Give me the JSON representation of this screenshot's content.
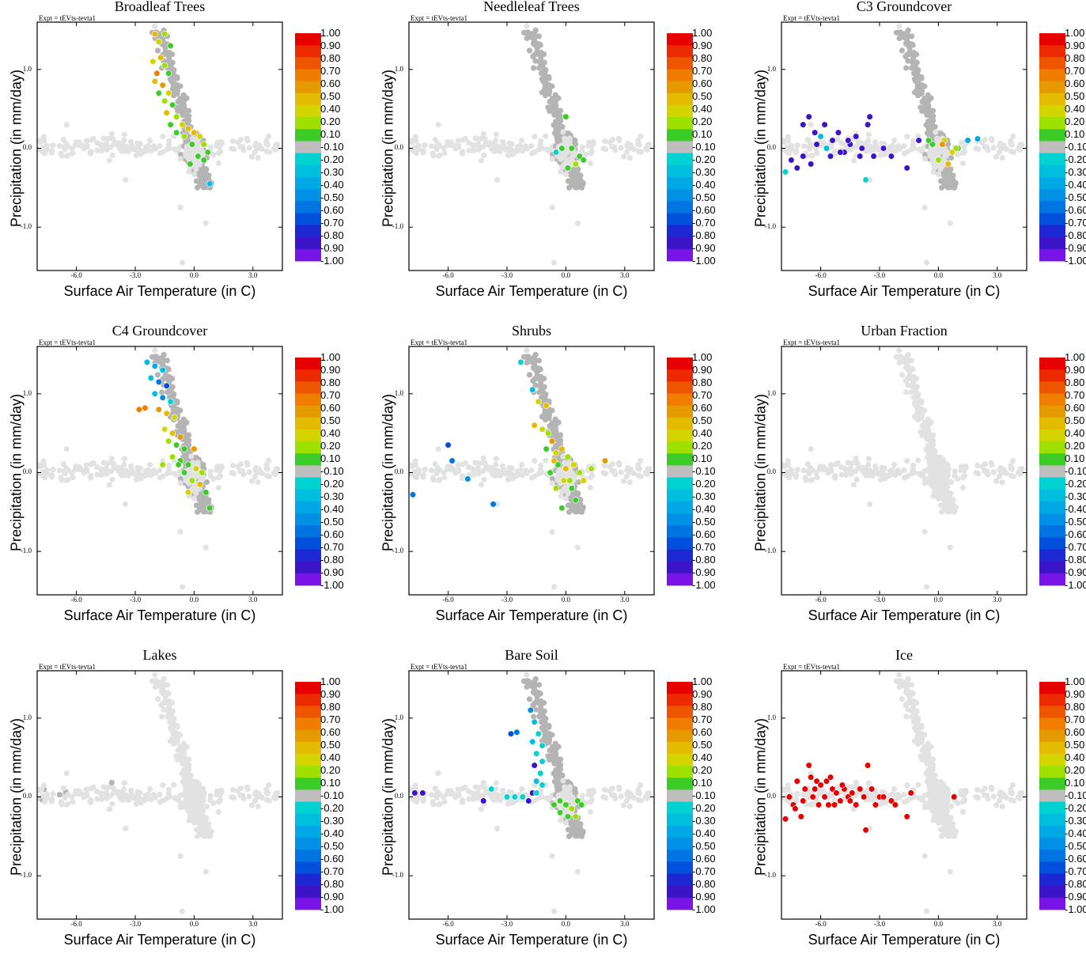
{
  "figure": {
    "experiment_label": "Expt = tEVts-tevta1",
    "xlabel": "Surface Air Temperature (in C)",
    "ylabel": "Precipitation (in mm/day)"
  },
  "chart_data": {
    "type": "scatter",
    "xlim": [
      -8.0,
      4.5
    ],
    "ylim": [
      -1.55,
      1.6
    ],
    "x_ticks": [
      -6.0,
      -3.0,
      0.0,
      3.0
    ],
    "x_tick_labels": [
      "-6.0",
      "-3.0",
      "0.0",
      "3.0"
    ],
    "y_ticks": [
      1.0,
      0.0,
      -1.0
    ],
    "y_tick_labels": [
      "1.0",
      "0.0",
      "-1.0"
    ],
    "colorbar": {
      "labels": [
        "1.00",
        "0.90",
        "0.80",
        "0.70",
        "0.60",
        "0.50",
        "0.40",
        "0.20",
        "0.10",
        "-0.10",
        "-0.20",
        "-0.30",
        "-0.40",
        "-0.50",
        "-0.60",
        "-0.70",
        "-0.80",
        "-0.90",
        "-1.00"
      ],
      "colors": [
        "#e60000",
        "#ec2a00",
        "#ee5500",
        "#f07d00",
        "#e59a00",
        "#e3bb00",
        "#d4d400",
        "#9ee000",
        "#3ccc28",
        "#bebebe",
        "#00d2d2",
        "#00bede",
        "#00a8e6",
        "#0090e6",
        "#0074e0",
        "#0050dc",
        "#1e28d2",
        "#3c14c8",
        "#7814e6"
      ]
    },
    "background_cloud_color": "#e2e2e2",
    "zero_class_color": "#b4b4b4",
    "panels": [
      {
        "title": "Broadleaf Trees",
        "highlight": [
          [
            -2.0,
            1.45
          ],
          [
            -1.8,
            1.35
          ],
          [
            -1.5,
            1.45
          ],
          [
            -1.2,
            1.3
          ],
          [
            -2.1,
            1.1
          ],
          [
            -1.7,
            1.15
          ],
          [
            -1.5,
            1.05
          ],
          [
            -1.9,
            0.95
          ],
          [
            -1.3,
            0.95
          ],
          [
            -2.0,
            0.85
          ],
          [
            -1.6,
            0.8
          ],
          [
            -1.8,
            0.7
          ],
          [
            -1.3,
            0.7
          ],
          [
            -1.5,
            0.6
          ],
          [
            -1.1,
            0.55
          ],
          [
            -1.4,
            0.45
          ],
          [
            -0.9,
            0.4
          ],
          [
            -1.2,
            0.3
          ],
          [
            -0.6,
            0.3
          ],
          [
            -0.9,
            0.2
          ],
          [
            -0.3,
            0.25
          ],
          [
            -0.5,
            0.15
          ],
          [
            0.0,
            0.2
          ],
          [
            0.3,
            0.15
          ],
          [
            -0.1,
            0.05
          ],
          [
            0.5,
            0.05
          ],
          [
            0.7,
            -0.05
          ],
          [
            0.2,
            -0.1
          ],
          [
            0.5,
            -0.15
          ],
          [
            0.8,
            -0.45
          ],
          [
            -0.2,
            -0.2
          ]
        ],
        "highlight_values": [
          0.5,
          0.4,
          0.2,
          0.1,
          0.4,
          0.5,
          0.2,
          0.7,
          0.1,
          0.5,
          0.6,
          0.1,
          0.4,
          0.2,
          0.1,
          0.5,
          0.2,
          0.1,
          0.4,
          0.1,
          0.5,
          0.2,
          0.5,
          0.4,
          0.1,
          0.2,
          0.1,
          0.1,
          0.1,
          -0.3,
          0.1
        ],
        "zero_count": 340,
        "light_count": 260
      },
      {
        "title": "Needleleaf Trees",
        "highlight": [
          [
            0.0,
            0.4
          ],
          [
            -0.2,
            0.0
          ],
          [
            0.3,
            0.0
          ],
          [
            0.5,
            -0.2
          ],
          [
            0.7,
            -0.1
          ],
          [
            0.1,
            -0.25
          ],
          [
            0.9,
            -0.15
          ],
          [
            -0.5,
            -0.05
          ]
        ],
        "highlight_values": [
          0.1,
          0.1,
          0.1,
          0.2,
          0.1,
          0.1,
          0.1,
          -0.2
        ],
        "zero_count": 340,
        "light_count": 260
      },
      {
        "title": "C3 Groundcover",
        "highlight": [
          [
            -7.5,
            -0.15
          ],
          [
            -7.2,
            -0.25
          ],
          [
            -6.9,
            0.3
          ],
          [
            -6.6,
            0.4
          ],
          [
            -6.3,
            0.2
          ],
          [
            -6.0,
            0.15
          ],
          [
            -5.7,
            0.0
          ],
          [
            -5.4,
            0.1
          ],
          [
            -5.1,
            0.2
          ],
          [
            -4.8,
            -0.05
          ],
          [
            -4.5,
            0.05
          ],
          [
            -4.2,
            0.15
          ],
          [
            -3.9,
            0.0
          ],
          [
            -3.6,
            0.3
          ],
          [
            -3.3,
            -0.1
          ],
          [
            -6.9,
            -0.1
          ],
          [
            -6.5,
            -0.2
          ],
          [
            -6.2,
            0.05
          ],
          [
            -5.8,
            0.3
          ],
          [
            -5.5,
            -0.1
          ],
          [
            -5.0,
            -0.05
          ],
          [
            -4.6,
            0.1
          ],
          [
            -4.0,
            -0.1
          ],
          [
            -3.5,
            0.4
          ],
          [
            -2.8,
            0.0
          ],
          [
            -2.4,
            -0.1
          ],
          [
            -1.6,
            -0.25
          ],
          [
            -1.0,
            0.1
          ],
          [
            -7.8,
            -0.3
          ],
          [
            -6.0,
            0.15
          ],
          [
            -5.7,
            0.0
          ],
          [
            -3.7,
            -0.4
          ],
          [
            1.5,
            0.1
          ],
          [
            2.0,
            0.12
          ],
          [
            1.0,
            0.0
          ],
          [
            0.3,
            0.1
          ],
          [
            -0.3,
            0.05
          ],
          [
            0.0,
            -0.15
          ],
          [
            0.5,
            -0.2
          ],
          [
            -0.5,
            0.1
          ],
          [
            0.2,
            0.05
          ],
          [
            0.7,
            -0.05
          ],
          [
            0.9,
            0.0
          ]
        ],
        "highlight_values": [
          -0.9,
          -0.9,
          -0.9,
          -0.9,
          -0.9,
          -0.9,
          -0.9,
          -0.9,
          -0.9,
          -0.9,
          -0.9,
          -0.9,
          -0.9,
          -0.9,
          -0.9,
          -0.9,
          -0.9,
          -0.9,
          -0.9,
          -0.9,
          -0.9,
          -0.9,
          -0.9,
          -0.9,
          -0.9,
          -0.9,
          -0.9,
          -0.9,
          -0.2,
          -0.3,
          -0.3,
          -0.2,
          -0.4,
          -0.4,
          0.1,
          0.4,
          0.1,
          0.2,
          0.5,
          0.1,
          0.6,
          0.4,
          0.2
        ],
        "zero_count": 330,
        "light_count": 220
      },
      {
        "title": "C4 Groundcover",
        "highlight": [
          [
            -2.4,
            1.4
          ],
          [
            -2.0,
            1.35
          ],
          [
            -1.6,
            1.3
          ],
          [
            -2.2,
            1.2
          ],
          [
            -1.8,
            1.15
          ],
          [
            -1.4,
            1.1
          ],
          [
            -2.0,
            1.0
          ],
          [
            -1.6,
            0.95
          ],
          [
            -1.2,
            0.9
          ],
          [
            -2.8,
            0.8
          ],
          [
            -2.5,
            0.82
          ],
          [
            -1.8,
            0.8
          ],
          [
            -1.4,
            0.75
          ],
          [
            -1.0,
            0.7
          ],
          [
            -1.5,
            0.55
          ],
          [
            -1.1,
            0.5
          ],
          [
            -0.7,
            0.45
          ],
          [
            -1.3,
            0.4
          ],
          [
            -0.9,
            0.35
          ],
          [
            -0.5,
            0.3
          ],
          [
            -1.1,
            0.2
          ],
          [
            -0.7,
            0.15
          ],
          [
            -0.3,
            0.1
          ],
          [
            0.1,
            0.05
          ],
          [
            -0.5,
            0.0
          ],
          [
            -0.1,
            -0.1
          ],
          [
            0.3,
            -0.15
          ],
          [
            0.6,
            -0.25
          ],
          [
            -0.8,
            0.1
          ],
          [
            0.0,
            0.3
          ],
          [
            0.4,
            0.0
          ],
          [
            0.8,
            -0.45
          ],
          [
            -1.6,
            0.1
          ],
          [
            -0.3,
            -0.25
          ]
        ],
        "highlight_values": [
          -0.3,
          -0.4,
          -0.3,
          -0.3,
          -0.6,
          -0.7,
          -0.3,
          -0.5,
          -0.2,
          0.7,
          0.7,
          0.6,
          0.5,
          0.4,
          0.4,
          0.5,
          0.6,
          0.2,
          0.1,
          0.1,
          0.2,
          0.1,
          0.1,
          0.4,
          0.1,
          0.2,
          0.5,
          0.1,
          0.1,
          0.6,
          0.2,
          0.1,
          0.2,
          0.4
        ],
        "zero_count": 340,
        "light_count": 260
      },
      {
        "title": "Shrubs",
        "highlight": [
          [
            -7.8,
            -0.28
          ],
          [
            -6.0,
            0.35
          ],
          [
            -5.8,
            0.15
          ],
          [
            -5.0,
            -0.08
          ],
          [
            -3.7,
            -0.4
          ],
          [
            -2.3,
            1.4
          ],
          [
            -1.7,
            1.05
          ],
          [
            -1.4,
            0.9
          ],
          [
            -1.0,
            0.85
          ],
          [
            -1.6,
            0.6
          ],
          [
            -1.2,
            0.55
          ],
          [
            -0.9,
            0.5
          ],
          [
            -0.7,
            0.4
          ],
          [
            -1.0,
            0.3
          ],
          [
            -0.5,
            0.25
          ],
          [
            -0.2,
            0.3
          ],
          [
            0.1,
            0.2
          ],
          [
            -0.4,
            0.1
          ],
          [
            0.0,
            0.05
          ],
          [
            0.4,
            0.1
          ],
          [
            0.7,
            0.0
          ],
          [
            -0.8,
            0.0
          ],
          [
            -0.1,
            -0.1
          ],
          [
            0.3,
            -0.2
          ],
          [
            -0.5,
            -0.2
          ],
          [
            0.9,
            -0.1
          ],
          [
            2.0,
            0.15
          ],
          [
            0.5,
            -0.35
          ],
          [
            -0.2,
            -0.45
          ],
          [
            -0.6,
            0.15
          ],
          [
            0.2,
            -0.1
          ],
          [
            1.3,
            0.05
          ]
        ],
        "highlight_values": [
          -0.6,
          -0.7,
          -0.6,
          -0.5,
          -0.6,
          -0.2,
          -0.3,
          0.4,
          0.5,
          0.5,
          0.4,
          0.2,
          0.6,
          0.1,
          0.4,
          0.5,
          0.2,
          0.1,
          0.5,
          0.4,
          0.2,
          0.1,
          0.4,
          0.1,
          0.2,
          0.4,
          0.6,
          0.1,
          0.1,
          0.5,
          0.2,
          0.2
        ],
        "zero_count": 340,
        "light_count": 260
      },
      {
        "title": "Urban Fraction",
        "highlight": [],
        "highlight_values": [],
        "zero_count": 0,
        "light_count": 560
      },
      {
        "title": "Lakes",
        "highlight": [],
        "highlight_values": [],
        "zero_count": 12,
        "light_count": 560
      },
      {
        "title": "Bare Soil",
        "highlight": [
          [
            -1.8,
            1.1
          ],
          [
            -1.6,
            0.95
          ],
          [
            -2.8,
            0.8
          ],
          [
            -2.5,
            0.82
          ],
          [
            -1.4,
            0.8
          ],
          [
            -1.7,
            0.7
          ],
          [
            -1.2,
            0.65
          ],
          [
            -1.5,
            0.55
          ],
          [
            -1.2,
            0.45
          ],
          [
            -1.6,
            0.4
          ],
          [
            -1.3,
            0.3
          ],
          [
            -1.5,
            0.2
          ],
          [
            -1.2,
            0.15
          ],
          [
            -1.7,
            0.05
          ],
          [
            -3.0,
            0.0
          ],
          [
            -2.6,
            0.0
          ],
          [
            -2.2,
            0.0
          ],
          [
            -1.9,
            -0.05
          ],
          [
            -3.8,
            0.1
          ],
          [
            -4.2,
            -0.05
          ],
          [
            -7.7,
            0.05
          ],
          [
            -7.3,
            0.05
          ],
          [
            -1.5,
            0.05
          ],
          [
            -0.6,
            -0.1
          ],
          [
            -0.3,
            -0.2
          ],
          [
            0.0,
            -0.1
          ],
          [
            0.3,
            -0.15
          ],
          [
            0.6,
            -0.05
          ],
          [
            -0.3,
            -0.05
          ],
          [
            0.1,
            -0.25
          ],
          [
            0.5,
            -0.25
          ],
          [
            0.8,
            -0.1
          ]
        ],
        "highlight_values": [
          -0.5,
          -0.3,
          -0.7,
          -0.6,
          -0.2,
          -0.3,
          -0.2,
          -0.2,
          -0.2,
          -0.9,
          -0.2,
          -0.3,
          -0.2,
          -0.9,
          -0.2,
          -0.2,
          -0.2,
          -0.9,
          -0.2,
          -0.9,
          -0.9,
          -0.9,
          -0.2,
          0.1,
          0.1,
          0.1,
          0.2,
          0.1,
          0.1,
          0.1,
          0.2,
          0.1
        ],
        "zero_count": 340,
        "light_count": 240
      },
      {
        "title": "Ice",
        "highlight": [
          [
            -7.8,
            -0.28
          ],
          [
            -7.6,
            0.0
          ],
          [
            -7.4,
            -0.1
          ],
          [
            -7.2,
            0.2
          ],
          [
            -7.0,
            -0.25
          ],
          [
            -6.8,
            0.1
          ],
          [
            -6.6,
            0.4
          ],
          [
            -6.4,
            0.0
          ],
          [
            -6.2,
            0.2
          ],
          [
            -6.0,
            0.15
          ],
          [
            -5.8,
            0.0
          ],
          [
            -5.6,
            -0.1
          ],
          [
            -5.4,
            0.1
          ],
          [
            -5.2,
            0.05
          ],
          [
            -5.0,
            -0.05
          ],
          [
            -4.8,
            0.1
          ],
          [
            -4.6,
            0.0
          ],
          [
            -4.4,
            0.05
          ],
          [
            -4.2,
            -0.1
          ],
          [
            -4.0,
            0.1
          ],
          [
            -3.8,
            0.0
          ],
          [
            -3.6,
            0.4
          ],
          [
            -3.4,
            0.1
          ],
          [
            -3.2,
            -0.1
          ],
          [
            -3.0,
            0.0
          ],
          [
            -2.8,
            0.0
          ],
          [
            -2.4,
            -0.05
          ],
          [
            -1.6,
            -0.25
          ],
          [
            -2.2,
            -0.1
          ],
          [
            -1.4,
            0.05
          ],
          [
            -7.3,
            -0.15
          ],
          [
            -6.9,
            -0.05
          ],
          [
            -6.5,
            0.25
          ],
          [
            -6.1,
            -0.1
          ],
          [
            -5.7,
            0.2
          ],
          [
            -5.3,
            -0.1
          ],
          [
            -4.9,
            0.15
          ],
          [
            -4.5,
            -0.05
          ],
          [
            -3.7,
            -0.42
          ],
          [
            0.8,
            0.0
          ],
          [
            -6.3,
            0.1
          ],
          [
            -5.5,
            0.25
          ]
        ],
        "highlight_values": [
          1,
          1,
          1,
          1,
          1,
          1,
          1,
          1,
          1,
          1,
          1,
          1,
          1,
          1,
          1,
          1,
          1,
          1,
          1,
          1,
          1,
          1,
          1,
          1,
          1,
          1,
          1,
          1,
          1,
          1,
          1,
          1,
          1,
          1,
          1,
          1,
          1,
          1,
          1,
          1,
          1,
          1
        ],
        "zero_count": 0,
        "light_count": 560
      }
    ]
  }
}
